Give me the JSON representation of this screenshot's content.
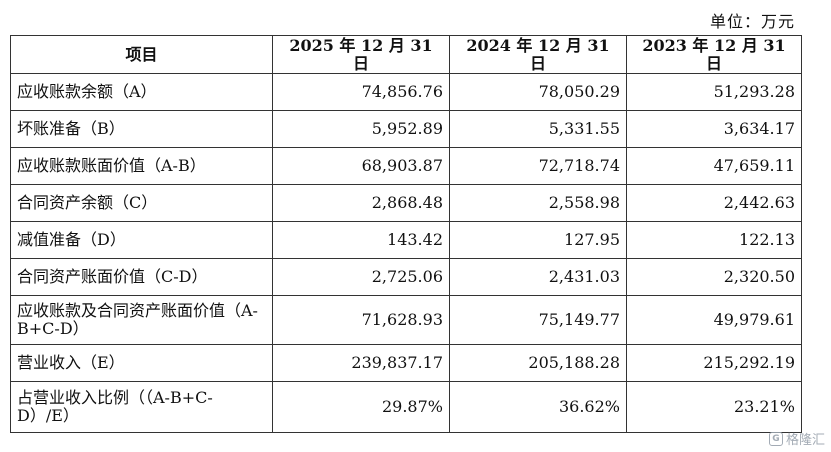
{
  "unit_label": "单位：万元",
  "table": {
    "headers": [
      "项目",
      "2025 年 12 月 31 日",
      "2024 年 12 月 31 日",
      "2023 年 12 月 31 日"
    ],
    "rows": [
      {
        "label": "应收账款余额（A）",
        "values": [
          "74,856.76",
          "78,050.29",
          "51,293.28"
        ]
      },
      {
        "label": "坏账准备（B）",
        "values": [
          "5,952.89",
          "5,331.55",
          "3,634.17"
        ]
      },
      {
        "label": "应收账款账面价值（A-B）",
        "values": [
          "68,903.87",
          "72,718.74",
          "47,659.11"
        ]
      },
      {
        "label": "合同资产余额（C）",
        "values": [
          "2,868.48",
          "2,558.98",
          "2,442.63"
        ]
      },
      {
        "label": "减值准备（D）",
        "values": [
          "143.42",
          "127.95",
          "122.13"
        ]
      },
      {
        "label": "合同资产账面价值（C-D）",
        "values": [
          "2,725.06",
          "2,431.03",
          "2,320.50"
        ]
      },
      {
        "label": "应收账款及合同资产账面价值（A-B+C-D）",
        "values": [
          "71,628.93",
          "75,149.77",
          "49,979.61"
        ]
      },
      {
        "label": "营业收入（E）",
        "values": [
          "239,837.17",
          "205,188.28",
          "215,292.19"
        ]
      },
      {
        "label": "占营业收入比例（（A-B+C-D）/E）",
        "values": [
          "29.87%",
          "36.62%",
          "23.21%"
        ]
      }
    ]
  },
  "watermark": {
    "text": "格隆汇",
    "icon": "glh-logo-icon"
  }
}
